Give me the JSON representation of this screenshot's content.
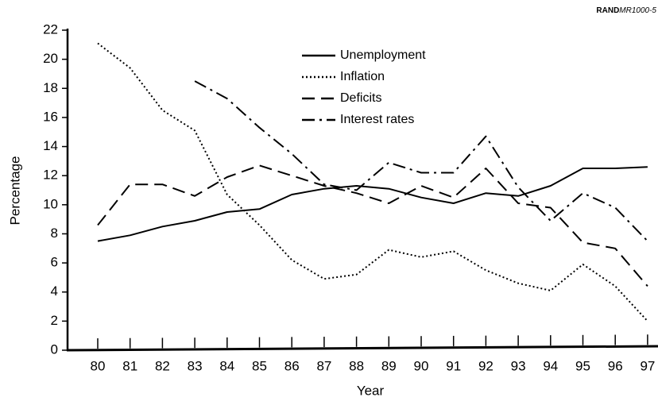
{
  "chart_data": {
    "type": "line",
    "source": {
      "bold": "RAND",
      "italic": "MR1000-5"
    },
    "x_label": "Year",
    "y_label": "Percentage",
    "categories": [
      "80",
      "81",
      "82",
      "83",
      "84",
      "85",
      "86",
      "87",
      "88",
      "89",
      "90",
      "91",
      "92",
      "93",
      "94",
      "95",
      "96",
      "97"
    ],
    "ylim": [
      0,
      22
    ],
    "yticks": [
      0,
      2,
      4,
      6,
      8,
      10,
      12,
      14,
      16,
      18,
      20,
      22
    ],
    "series": [
      {
        "name": "Unemployment",
        "color": "#000000",
        "style": "solid",
        "values": [
          7.5,
          7.9,
          8.5,
          8.9,
          9.5,
          9.7,
          10.7,
          11.1,
          11.3,
          11.1,
          10.5,
          10.1,
          10.8,
          10.6,
          11.3,
          12.5,
          12.5,
          12.6
        ]
      },
      {
        "name": "Inflation",
        "color": "#000000",
        "style": "dotted",
        "values": [
          21.1,
          19.4,
          16.5,
          15.1,
          10.7,
          8.6,
          6.2,
          4.9,
          5.2,
          6.9,
          6.4,
          6.8,
          5.5,
          4.6,
          4.1,
          5.9,
          4.4,
          2.0
        ]
      },
      {
        "name": "Deficits",
        "color": "#000000",
        "style": "dashed",
        "values": [
          8.6,
          11.4,
          11.4,
          10.6,
          11.9,
          12.7,
          12.0,
          11.3,
          10.8,
          10.1,
          11.3,
          10.5,
          12.5,
          10.1,
          9.8,
          7.4,
          7.0,
          4.4
        ]
      },
      {
        "name": "Interest rates",
        "color": "#000000",
        "style": "dashdot",
        "values": [
          null,
          null,
          null,
          18.5,
          17.3,
          15.3,
          13.5,
          11.4,
          11.0,
          12.9,
          12.2,
          12.2,
          14.7,
          11.2,
          8.9,
          10.8,
          9.8,
          7.5
        ]
      }
    ]
  }
}
